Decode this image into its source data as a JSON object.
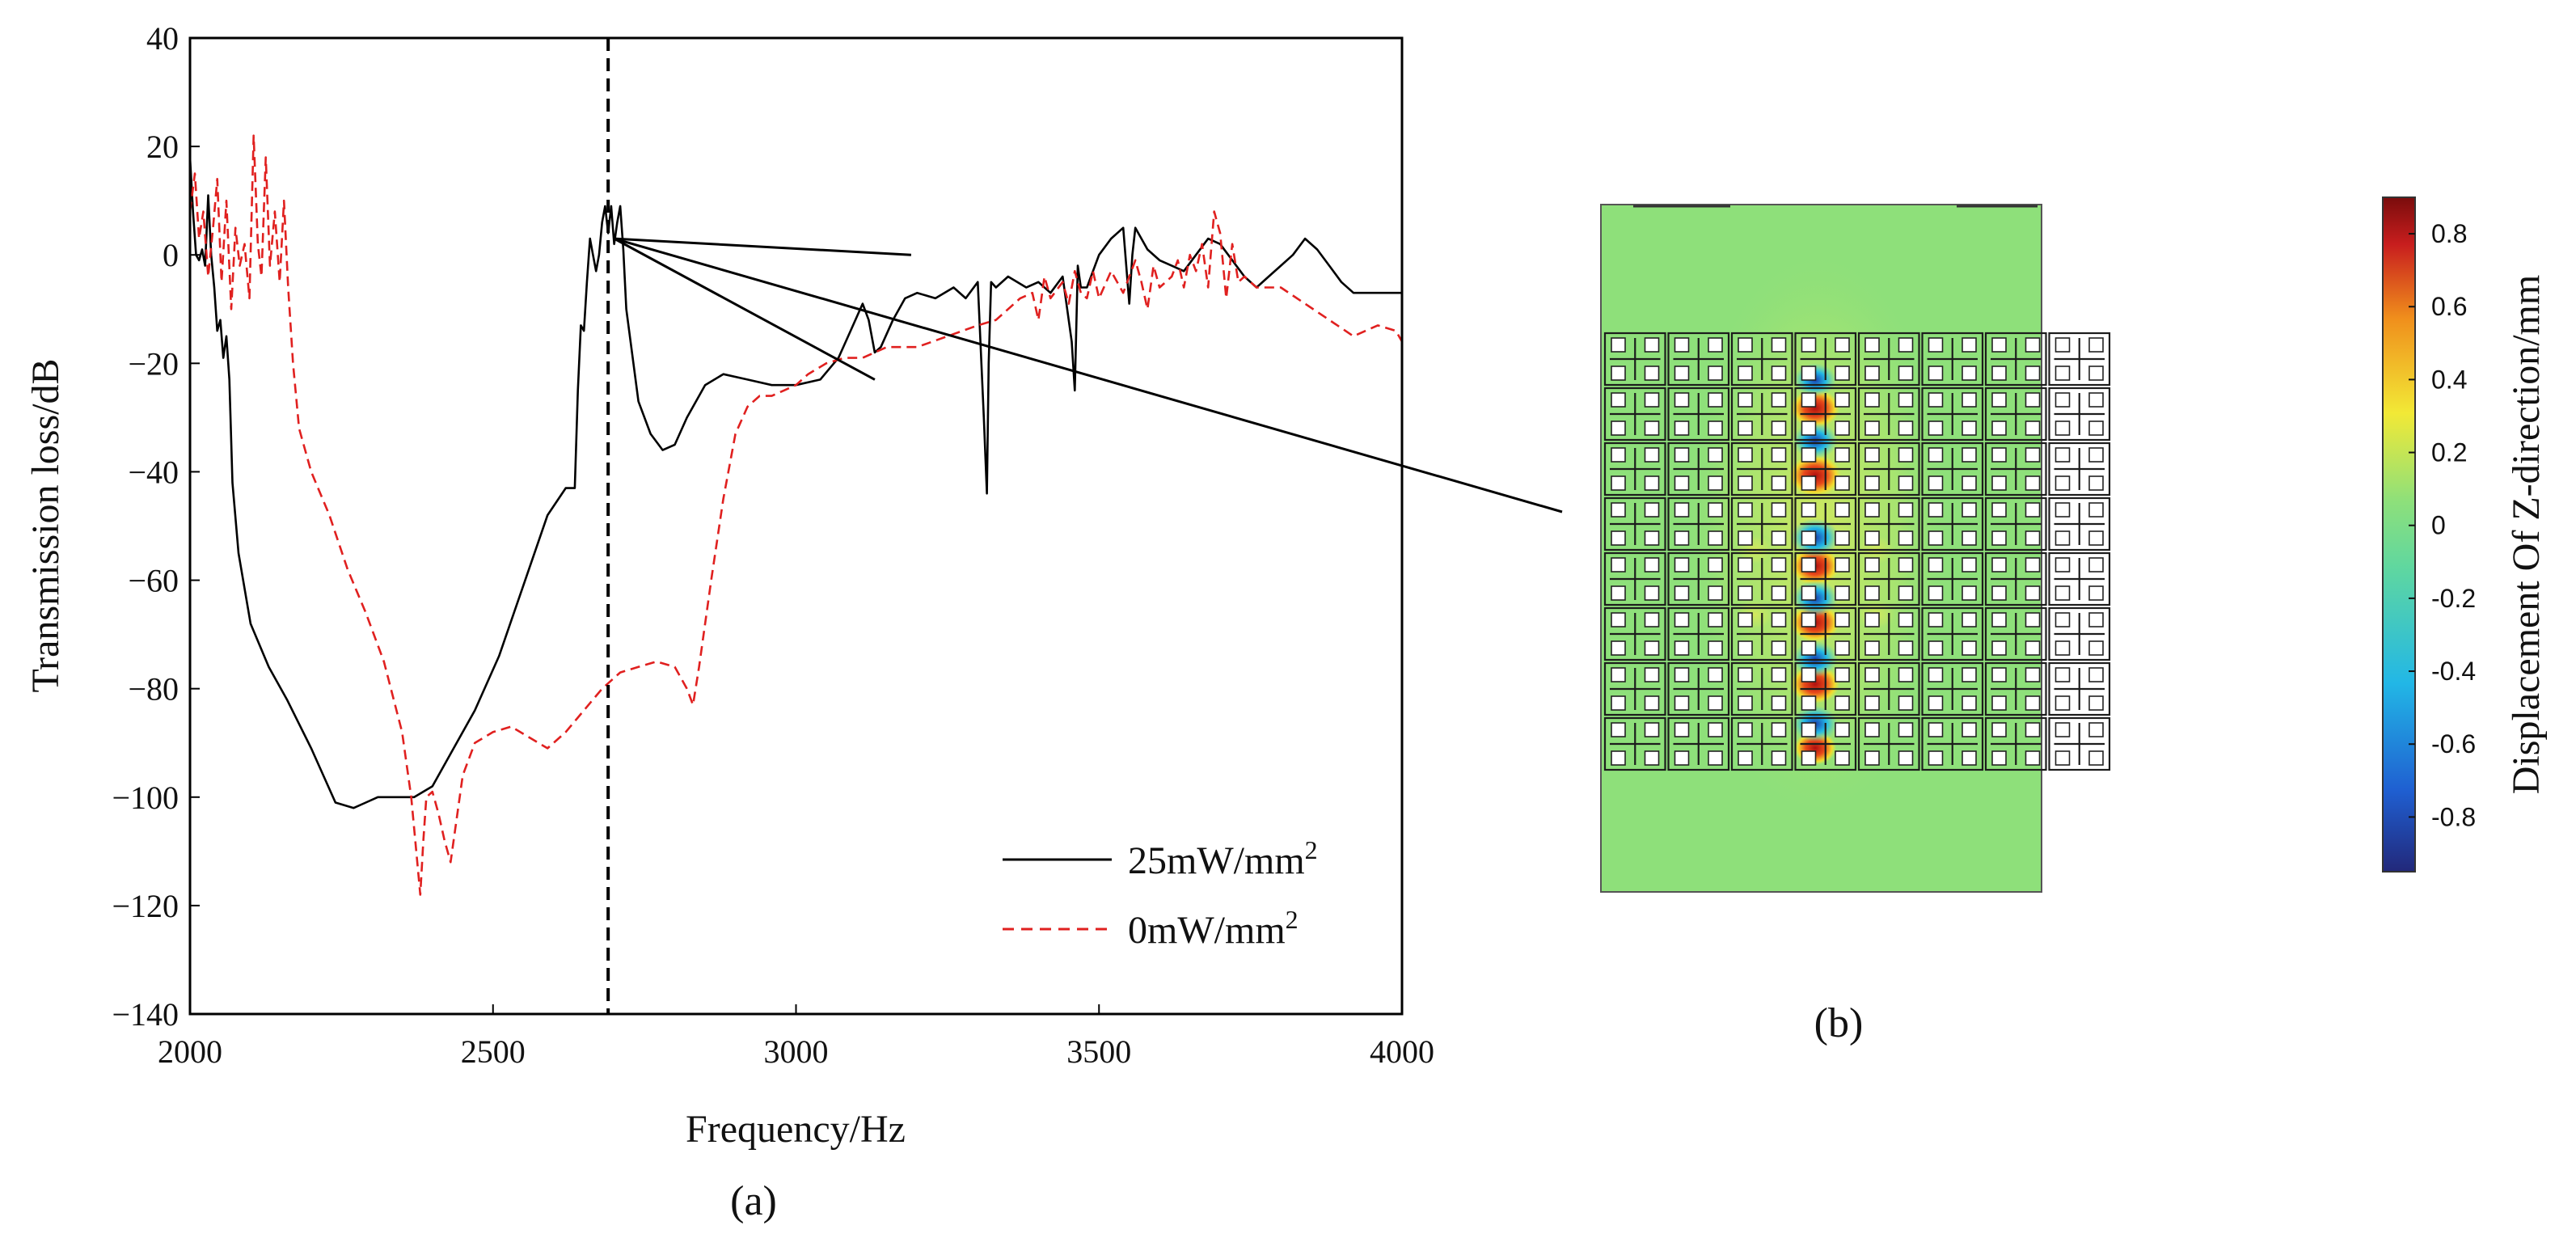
{
  "chart_data": [
    {
      "type": "line",
      "panel_label": "(a)",
      "xlabel": "Frequency/Hz",
      "ylabel": "Transmission loss/dB",
      "xlim": [
        2000,
        4000
      ],
      "ylim": [
        -140,
        40
      ],
      "xticks": [
        2000,
        2500,
        3000,
        3500,
        4000
      ],
      "yticks": [
        40,
        20,
        0,
        -20,
        -40,
        -60,
        -80,
        -100,
        -120,
        -140
      ],
      "ytick_labels": [
        "40",
        "20",
        "0",
        "−20",
        "−40",
        "−60",
        "−80",
        "−100",
        "−120",
        "−140"
      ],
      "grid": false,
      "marker_line_x": 2690,
      "legend_position": "bottom-right",
      "series": [
        {
          "name": "25mW/mm",
          "name_sup": "2",
          "color": "#000000",
          "dash": "solid",
          "x": [
            2000,
            2005,
            2010,
            2015,
            2020,
            2025,
            2030,
            2035,
            2040,
            2045,
            2050,
            2055,
            2060,
            2065,
            2070,
            2080,
            2100,
            2130,
            2160,
            2200,
            2240,
            2270,
            2290,
            2310,
            2340,
            2370,
            2400,
            2430,
            2470,
            2510,
            2550,
            2590,
            2620,
            2635,
            2640,
            2645,
            2650,
            2655,
            2660,
            2665,
            2670,
            2675,
            2680,
            2685,
            2690,
            2695,
            2700,
            2705,
            2710,
            2715,
            2720,
            2740,
            2760,
            2780,
            2800,
            2820,
            2850,
            2880,
            2920,
            2960,
            3000,
            3040,
            3070,
            3090,
            3110,
            3120,
            3130,
            3140,
            3160,
            3180,
            3200,
            3230,
            3260,
            3280,
            3300,
            3310,
            3315,
            3318,
            3322,
            3330,
            3350,
            3380,
            3400,
            3420,
            3440,
            3455,
            3460,
            3465,
            3470,
            3480,
            3500,
            3520,
            3540,
            3550,
            3555,
            3560,
            3570,
            3580,
            3600,
            3620,
            3640,
            3660,
            3680,
            3700,
            3720,
            3740,
            3760,
            3780,
            3800,
            3820,
            3840,
            3860,
            3880,
            3900,
            3920,
            3940,
            3960,
            3980,
            4000
          ],
          "y": [
            18,
            8,
            0,
            -1,
            1,
            -2,
            11,
            0,
            -6,
            -14,
            -12,
            -19,
            -15,
            -23,
            -42,
            -55,
            -68,
            -76,
            -82,
            -91,
            -101,
            -102,
            -101,
            -100,
            -100,
            -100,
            -98,
            -92,
            -84,
            -74,
            -61,
            -48,
            -43,
            -43,
            -25,
            -13,
            -14,
            -5,
            3,
            0,
            -3,
            0,
            6,
            9,
            4,
            9,
            2,
            6,
            9,
            1,
            -10,
            -27,
            -33,
            -36,
            -35,
            -30,
            -24,
            -22,
            -23,
            -24,
            -24,
            -23,
            -19,
            -14,
            -9,
            -12,
            -18,
            -17,
            -12,
            -8,
            -7,
            -8,
            -6,
            -8,
            -5,
            -30,
            -44,
            -20,
            -5,
            -6,
            -4,
            -6,
            -5,
            -7,
            -4,
            -16,
            -25,
            -2,
            -6,
            -6,
            0,
            3,
            5,
            -9,
            0,
            5,
            3,
            1,
            -1,
            -2,
            -3,
            0,
            3,
            2,
            -1,
            -4,
            -6,
            -4,
            -2,
            0,
            3,
            1,
            -2,
            -5,
            -7,
            -7,
            -7,
            -7,
            -7
          ]
        },
        {
          "name": "0mW/mm",
          "name_sup": "2",
          "color": "#e0201f",
          "dash": "dashed",
          "x": [
            2000,
            2008,
            2015,
            2022,
            2030,
            2038,
            2045,
            2052,
            2060,
            2068,
            2075,
            2082,
            2090,
            2098,
            2105,
            2112,
            2118,
            2125,
            2132,
            2140,
            2148,
            2155,
            2162,
            2170,
            2180,
            2200,
            2230,
            2260,
            2290,
            2320,
            2350,
            2365,
            2375,
            2380,
            2385,
            2390,
            2400,
            2410,
            2420,
            2430,
            2440,
            2450,
            2470,
            2500,
            2530,
            2560,
            2590,
            2620,
            2650,
            2680,
            2710,
            2740,
            2770,
            2800,
            2820,
            2830,
            2840,
            2860,
            2880,
            2900,
            2920,
            2940,
            2960,
            2980,
            3000,
            3020,
            3050,
            3080,
            3110,
            3150,
            3200,
            3250,
            3300,
            3330,
            3350,
            3370,
            3390,
            3400,
            3410,
            3420,
            3440,
            3450,
            3460,
            3470,
            3480,
            3490,
            3500,
            3520,
            3540,
            3560,
            3570,
            3580,
            3590,
            3600,
            3620,
            3630,
            3640,
            3650,
            3660,
            3670,
            3680,
            3690,
            3700,
            3710,
            3720,
            3730,
            3740,
            3760,
            3800,
            3840,
            3880,
            3920,
            3960,
            3990,
            4000
          ],
          "y": [
            8,
            15,
            3,
            8,
            -4,
            5,
            14,
            -5,
            10,
            -10,
            5,
            -2,
            2,
            -8,
            22,
            2,
            -4,
            18,
            -2,
            8,
            -5,
            10,
            -6,
            -20,
            -32,
            -40,
            -48,
            -58,
            -66,
            -75,
            -88,
            -100,
            -112,
            -118,
            -108,
            -100,
            -99,
            -103,
            -108,
            -112,
            -104,
            -96,
            -90,
            -88,
            -87,
            -89,
            -91,
            -88,
            -84,
            -80,
            -77,
            -76,
            -75,
            -76,
            -80,
            -83,
            -76,
            -60,
            -45,
            -33,
            -28,
            -26,
            -26,
            -25,
            -24,
            -22,
            -20,
            -19,
            -19,
            -17,
            -17,
            -15,
            -13,
            -12,
            -10,
            -8,
            -7,
            -12,
            -4,
            -8,
            -5,
            -9,
            -3,
            -7,
            -8,
            -3,
            -8,
            -3,
            -7,
            -1,
            -5,
            -10,
            -2,
            -6,
            -4,
            -1,
            -6,
            0,
            -3,
            2,
            -6,
            8,
            4,
            -8,
            2,
            -5,
            -4,
            -6,
            -6,
            -9,
            -12,
            -15,
            -13,
            -14,
            -16
          ]
        }
      ],
      "annotation_lines_from": [
        2700,
        3
      ],
      "annotation_lines_to": [
        [
          3190,
          0
        ],
        [
          3130,
          -23
        ],
        [
          4000,
          -40
        ]
      ]
    },
    {
      "type": "heatmap",
      "panel_label": "(b)",
      "colorbar_title": "Displacement Of Z-direction/mm",
      "colorbar_range": [
        -0.95,
        0.9
      ],
      "colorbar_ticks": [
        0.8,
        0.6,
        0.4,
        0.2,
        0,
        -0.2,
        -0.4,
        -0.6,
        -0.8
      ],
      "colorbar_tick_labels": [
        "0.8",
        "0.6",
        "0.4",
        "0.2",
        "0",
        "-0.2",
        "-0.4",
        "-0.6",
        "-0.8"
      ],
      "grid_rows": 8,
      "grid_cols": 8,
      "background_color": "#8ee07a",
      "colormap": [
        "#22287a",
        "#1f5fd1",
        "#22b7e6",
        "#8ee07a",
        "#f2e936",
        "#f08f1c",
        "#c81e1e",
        "#7a0c0c"
      ]
    }
  ]
}
